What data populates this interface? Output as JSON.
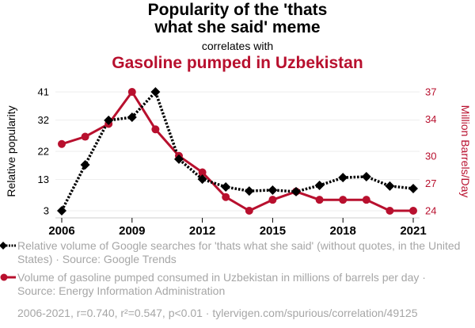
{
  "header": {
    "title": "Popularity of the 'thats what she said' meme",
    "title_line1": "Popularity of the 'thats",
    "title_line2": "what she said' meme",
    "subtitle": "correlates with",
    "title2": "Gasoline pumped in Uzbekistan"
  },
  "colors": {
    "series1": "#000000",
    "series2": "#b8102e",
    "grid": "#eeeeee",
    "axis": "#cccccc",
    "legend_text": "#a6a6a6"
  },
  "chart_data": {
    "type": "line",
    "title": "Popularity of the 'thats what she said' meme correlates with Gasoline pumped in Uzbekistan",
    "x": [
      2006,
      2007,
      2008,
      2009,
      2010,
      2011,
      2012,
      2013,
      2014,
      2015,
      2016,
      2017,
      2018,
      2019,
      2020,
      2021
    ],
    "xticks": [
      "2006",
      "2009",
      "2012",
      "2015",
      "2018",
      "2021"
    ],
    "xlabel": "",
    "ylabel": "Relative popularity",
    "ylabel_right": "Million Barrels/Day",
    "ylim": [
      3,
      41
    ],
    "ylim_right": [
      24,
      37
    ],
    "yticks": [
      "3",
      "13",
      "22",
      "32",
      "41"
    ],
    "yticks_right": [
      "24",
      "27",
      "30",
      "34",
      "37"
    ],
    "grid": true,
    "legend_position": "bottom",
    "series": [
      {
        "name": "Relative volume of Google searches for 'thats what she said' (without quotes, in the United States) · Source: Google Trends",
        "axis": "left",
        "style": "dotted-diamond",
        "values": [
          3,
          17.7,
          31.9,
          32.9,
          41,
          19.5,
          13.1,
          10.6,
          9.3,
          9.6,
          9.1,
          11.1,
          13.6,
          13.9,
          10.9,
          10.1
        ]
      },
      {
        "name": "Volume of gasoline pumped consumed in Uzbekistan in millions of barrels per day · Source: Energy Information Administration",
        "axis": "right",
        "style": "solid-circle",
        "values": [
          31.3,
          32.1,
          33.5,
          37,
          32.9,
          30.0,
          28.2,
          25.5,
          24,
          25.2,
          26.1,
          25.2,
          25.2,
          25.2,
          24,
          24
        ]
      }
    ]
  },
  "legend": {
    "item1": "Relative volume of Google searches for 'thats what she said' (without quotes, in the United States) · Source: Google Trends",
    "item2": "Volume of gasoline pumped consumed in Uzbekistan in millions of barrels per day · Source: Energy Information Administration"
  },
  "footer": "2006-2021, r=0.740, r²=0.547, p<0.01 · tylervigen.com/spurious/correlation/49125"
}
